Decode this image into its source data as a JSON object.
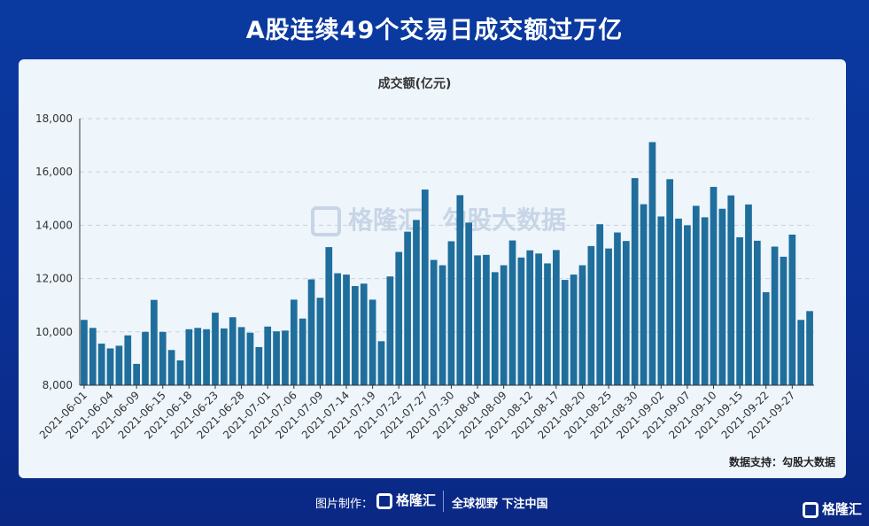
{
  "headline": "A股连续49个交易日成交额过万亿",
  "source": "数据支持：勾股大数据",
  "watermark": {
    "brand": "格隆汇",
    "brand_url": "www.gelonghui.com",
    "data": "勾股大数据",
    "data_url": "www.gogudata.com"
  },
  "footer": {
    "made_by": "图片制作：",
    "logo": "格隆汇",
    "slogan": "全球视野 下注中国",
    "corner_logo": "格隆汇"
  },
  "colors": {
    "bar": "#1f6e9c",
    "bar_top": "#3b8cc0",
    "background": "#0b3196",
    "card": "#eef5fb"
  },
  "chart_data": {
    "type": "bar",
    "title": "成交额(亿元)",
    "ylim": [
      8000,
      18000
    ],
    "yticks": [
      "8,000",
      "10,000",
      "12,000",
      "14,000",
      "16,000",
      "18,000"
    ],
    "grid": "horizontal dashed",
    "x_tick_labels": [
      "2021-06-01",
      "2021-06-04",
      "2021-06-09",
      "2021-06-15",
      "2021-06-18",
      "2021-06-23",
      "2021-06-28",
      "2021-07-01",
      "2021-07-06",
      "2021-07-09",
      "2021-07-14",
      "2021-07-19",
      "2021-07-22",
      "2021-07-27",
      "2021-07-30",
      "2021-08-04",
      "2021-08-09",
      "2021-08-12",
      "2021-08-17",
      "2021-08-20",
      "2021-08-25",
      "2021-08-30",
      "2021-09-02",
      "2021-09-07",
      "2021-09-10",
      "2021-09-15",
      "2021-09-22",
      "2021-09-27"
    ],
    "x_tick_every": 3,
    "values": [
      10450,
      10150,
      9560,
      9380,
      9480,
      9870,
      8800,
      10000,
      11200,
      10000,
      9320,
      8930,
      10100,
      10150,
      10100,
      10720,
      10130,
      10550,
      10180,
      9970,
      9430,
      10200,
      10020,
      10050,
      11210,
      10500,
      11970,
      11280,
      13180,
      12200,
      12150,
      11720,
      11810,
      11210,
      9650,
      12080,
      13000,
      13760,
      14200,
      15340,
      12700,
      12500,
      13400,
      15130,
      14100,
      12870,
      12890,
      12240,
      12500,
      13430,
      12790,
      13060,
      12940,
      12570,
      13070,
      11950,
      12150,
      12500,
      13220,
      14040,
      13130,
      13730,
      13410,
      15770,
      14790,
      17120,
      14330,
      15730,
      14250,
      14000,
      14730,
      14300,
      15440,
      14620,
      15120,
      13550,
      14780,
      13420,
      11490,
      13200,
      12820,
      13650,
      10450,
      10780
    ]
  }
}
